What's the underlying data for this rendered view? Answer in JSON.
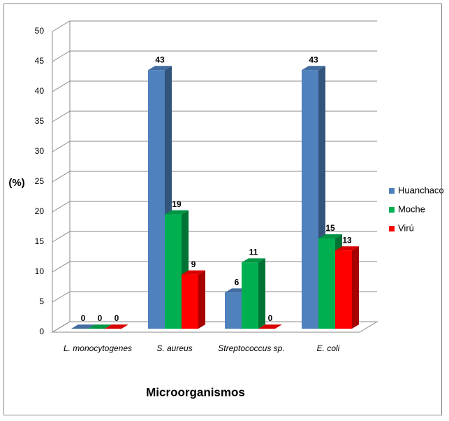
{
  "chart_data": {
    "type": "bar3d",
    "x_label": "Microorganismos",
    "y_label": "(%)",
    "categories": [
      "L. monocytogenes",
      "S. aureus",
      "Streptococcus sp.",
      "E. coli"
    ],
    "series": [
      {
        "name": "Huanchaco",
        "color": "#4f81bd",
        "values": [
          0,
          43,
          6,
          43
        ]
      },
      {
        "name": "Moche",
        "color": "#00b050",
        "values": [
          0,
          19,
          11,
          15
        ]
      },
      {
        "name": "Virú",
        "color": "#ff0000",
        "values": [
          0,
          9,
          0,
          13
        ]
      }
    ],
    "ylim": [
      0,
      50
    ],
    "yticks": [
      0,
      5,
      10,
      15,
      20,
      25,
      30,
      35,
      40,
      45,
      50
    ],
    "grid": true,
    "legend": "right"
  }
}
